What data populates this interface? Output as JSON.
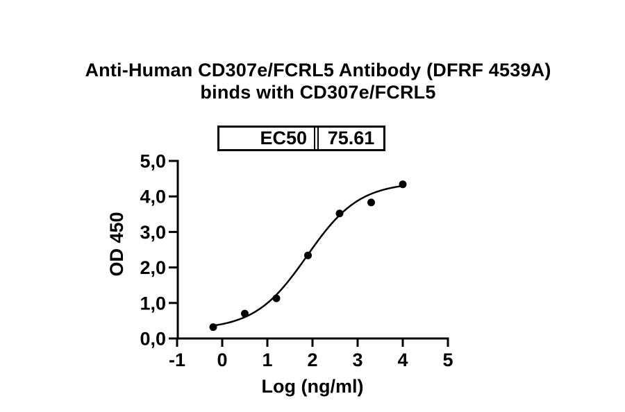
{
  "page": {
    "background_color": "#ffffff",
    "foreground_color": "#000000"
  },
  "title": {
    "line1": "Anti-Human CD307e/FCRL5 Antibody (DFRF 4539A)",
    "line2": "binds with CD307e/FCRL5"
  },
  "ec50_table": {
    "label": "EC50",
    "value": "75.61"
  },
  "chart_data": {
    "type": "scatter",
    "title": "Anti-Human CD307e/FCRL5 Antibody (DFRF 4539A) binds with CD307e/FCRL5",
    "xlabel": "Log (ng/ml)",
    "ylabel": "OD 450",
    "xlim": [
      -1,
      5
    ],
    "ylim": [
      0,
      5
    ],
    "xticks": [
      -1,
      0,
      1,
      2,
      3,
      4,
      5
    ],
    "xtick_labels": [
      "-1",
      "0",
      "1",
      "2",
      "3",
      "4",
      "5"
    ],
    "yticks": [
      0,
      1,
      2,
      3,
      4,
      5
    ],
    "ytick_labels": [
      "0,0",
      "1,0",
      "2,0",
      "3,0",
      "4,0",
      "5,0"
    ],
    "grid": false,
    "legend": "none",
    "x": [
      -0.2,
      0.5,
      1.2,
      1.9,
      2.6,
      3.3,
      4.0
    ],
    "y": [
      0.32,
      0.7,
      1.13,
      2.34,
      3.52,
      3.83,
      4.34
    ],
    "ec50": 75.61,
    "fit_curve": {
      "model": "4PL-sigmoid",
      "bottom": 0.25,
      "top": 4.4,
      "log_ec50": 1.8786,
      "hill_slope": 0.75,
      "x_start": -0.2,
      "x_end": 4.0
    },
    "marker": {
      "shape": "circle",
      "color": "#000000",
      "radius_px": 5.5
    },
    "line_color": "#000000",
    "axis_color": "#000000"
  }
}
